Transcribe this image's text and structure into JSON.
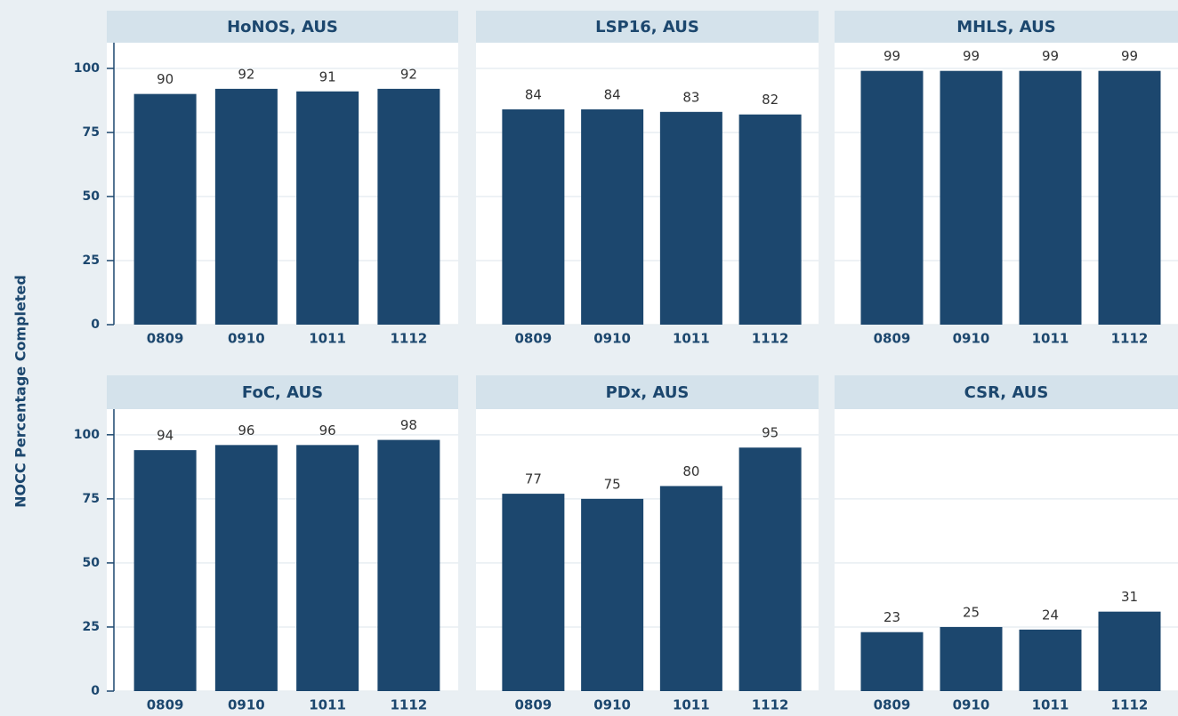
{
  "y_label": "NOCC Percentage Completed",
  "chart_data": [
    {
      "type": "bar",
      "title": "HoNOS, AUS",
      "categories": [
        "0809",
        "0910",
        "1011",
        "1112"
      ],
      "values": [
        90,
        92,
        91,
        92
      ],
      "color": "#1c476e",
      "ylim": [
        0,
        110
      ],
      "yticks": [
        0,
        25,
        50,
        75,
        100
      ],
      "grid": true
    },
    {
      "type": "bar",
      "title": "LSP16, AUS",
      "categories": [
        "0809",
        "0910",
        "1011",
        "1112"
      ],
      "values": [
        84,
        84,
        83,
        82
      ],
      "color": "#1c476e",
      "ylim": [
        0,
        110
      ],
      "yticks": [
        0,
        25,
        50,
        75,
        100
      ],
      "grid": true
    },
    {
      "type": "bar",
      "title": "MHLS, AUS",
      "categories": [
        "0809",
        "0910",
        "1011",
        "1112"
      ],
      "values": [
        99,
        99,
        99,
        99
      ],
      "color": "#1c476e",
      "ylim": [
        0,
        110
      ],
      "yticks": [
        0,
        25,
        50,
        75,
        100
      ],
      "grid": true
    },
    {
      "type": "bar",
      "title": "FoC, AUS",
      "categories": [
        "0809",
        "0910",
        "1011",
        "1112"
      ],
      "values": [
        94,
        96,
        96,
        98
      ],
      "color": "#1c476e",
      "ylim": [
        0,
        110
      ],
      "yticks": [
        0,
        25,
        50,
        75,
        100
      ],
      "grid": true
    },
    {
      "type": "bar",
      "title": "PDx, AUS",
      "categories": [
        "0809",
        "0910",
        "1011",
        "1112"
      ],
      "values": [
        77,
        75,
        80,
        95
      ],
      "color": "#1c476e",
      "ylim": [
        0,
        110
      ],
      "yticks": [
        0,
        25,
        50,
        75,
        100
      ],
      "grid": true
    },
    {
      "type": "bar",
      "title": "CSR, AUS",
      "categories": [
        "0809",
        "0910",
        "1011",
        "1112"
      ],
      "values": [
        23,
        25,
        24,
        31
      ],
      "color": "#1c476e",
      "ylim": [
        0,
        110
      ],
      "yticks": [
        0,
        25,
        50,
        75,
        100
      ],
      "grid": true
    }
  ]
}
